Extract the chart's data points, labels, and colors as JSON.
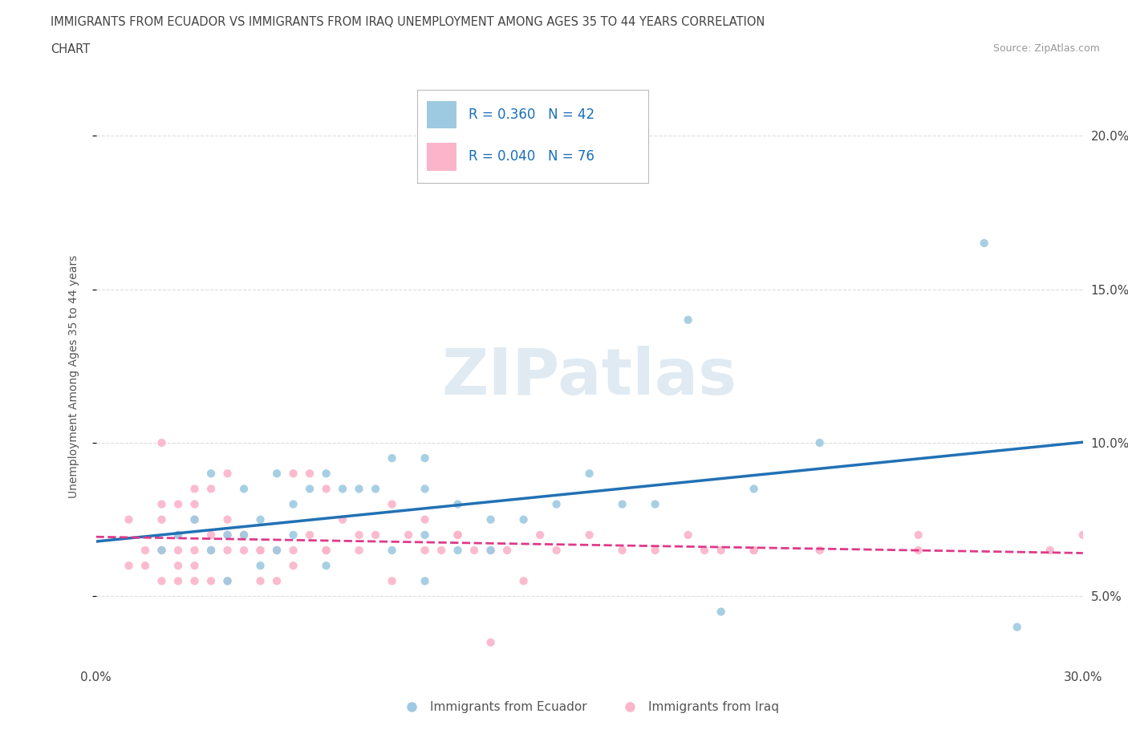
{
  "title_line1": "IMMIGRANTS FROM ECUADOR VS IMMIGRANTS FROM IRAQ UNEMPLOYMENT AMONG AGES 35 TO 44 YEARS CORRELATION",
  "title_line2": "CHART",
  "source_text": "Source: ZipAtlas.com",
  "ylabel": "Unemployment Among Ages 35 to 44 years",
  "xlim": [
    0.0,
    0.3
  ],
  "ylim": [
    0.028,
    0.215
  ],
  "ecuador_color": "#9ecae1",
  "iraq_color": "#fbb4c9",
  "ecuador_line_color": "#2171b5",
  "iraq_line_color": "#de3a8a",
  "watermark": "ZIPatlas",
  "watermark_color": "#c8daea",
  "legend_r_ecuador": "R = 0.360",
  "legend_n_ecuador": "N = 42",
  "legend_r_iraq": "R = 0.040",
  "legend_n_iraq": "N = 76",
  "legend_text_color": "#1a6fba",
  "ecuador_x": [
    0.02,
    0.025,
    0.03,
    0.035,
    0.035,
    0.04,
    0.04,
    0.045,
    0.045,
    0.05,
    0.05,
    0.055,
    0.055,
    0.06,
    0.06,
    0.065,
    0.07,
    0.07,
    0.075,
    0.08,
    0.085,
    0.09,
    0.09,
    0.1,
    0.1,
    0.1,
    0.1,
    0.11,
    0.11,
    0.12,
    0.12,
    0.13,
    0.14,
    0.15,
    0.16,
    0.17,
    0.18,
    0.19,
    0.2,
    0.22,
    0.27,
    0.28
  ],
  "ecuador_y": [
    0.065,
    0.07,
    0.075,
    0.065,
    0.09,
    0.055,
    0.07,
    0.07,
    0.085,
    0.06,
    0.075,
    0.065,
    0.09,
    0.07,
    0.08,
    0.085,
    0.06,
    0.09,
    0.085,
    0.085,
    0.085,
    0.065,
    0.095,
    0.055,
    0.07,
    0.085,
    0.095,
    0.065,
    0.08,
    0.065,
    0.075,
    0.075,
    0.08,
    0.09,
    0.08,
    0.08,
    0.14,
    0.045,
    0.085,
    0.1,
    0.165,
    0.04
  ],
  "iraq_x": [
    0.01,
    0.015,
    0.015,
    0.02,
    0.02,
    0.02,
    0.025,
    0.025,
    0.025,
    0.025,
    0.03,
    0.03,
    0.03,
    0.03,
    0.035,
    0.035,
    0.035,
    0.04,
    0.04,
    0.04,
    0.045,
    0.045,
    0.05,
    0.05,
    0.055,
    0.055,
    0.06,
    0.065,
    0.065,
    0.07,
    0.075,
    0.08,
    0.085,
    0.09,
    0.095,
    0.1,
    0.105,
    0.11,
    0.115,
    0.12,
    0.125,
    0.13,
    0.135,
    0.14,
    0.15,
    0.16,
    0.17,
    0.18,
    0.19,
    0.2,
    0.01,
    0.02,
    0.02,
    0.025,
    0.03,
    0.03,
    0.035,
    0.04,
    0.04,
    0.05,
    0.06,
    0.06,
    0.07,
    0.07,
    0.08,
    0.09,
    0.1,
    0.11,
    0.12,
    0.22,
    0.25,
    0.25,
    0.29,
    0.2,
    0.185,
    0.3
  ],
  "iraq_y": [
    0.06,
    0.06,
    0.065,
    0.055,
    0.065,
    0.1,
    0.055,
    0.06,
    0.065,
    0.07,
    0.055,
    0.06,
    0.065,
    0.08,
    0.055,
    0.065,
    0.07,
    0.055,
    0.065,
    0.09,
    0.065,
    0.07,
    0.055,
    0.065,
    0.055,
    0.065,
    0.06,
    0.07,
    0.09,
    0.065,
    0.075,
    0.065,
    0.07,
    0.055,
    0.07,
    0.075,
    0.065,
    0.07,
    0.065,
    0.035,
    0.065,
    0.055,
    0.07,
    0.065,
    0.07,
    0.065,
    0.065,
    0.07,
    0.065,
    0.065,
    0.075,
    0.075,
    0.08,
    0.08,
    0.075,
    0.085,
    0.085,
    0.075,
    0.07,
    0.065,
    0.065,
    0.09,
    0.065,
    0.085,
    0.07,
    0.08,
    0.065,
    0.07,
    0.065,
    0.065,
    0.065,
    0.07,
    0.065,
    0.065,
    0.065,
    0.07
  ],
  "background_color": "#ffffff",
  "grid_color": "#dddddd"
}
